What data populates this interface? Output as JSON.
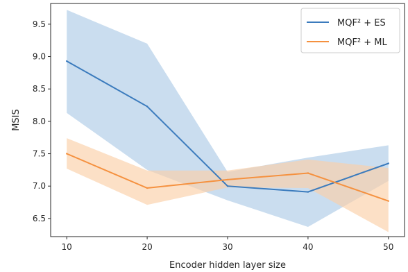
{
  "chart_data": {
    "type": "line",
    "xlabel": "Encoder hidden layer size",
    "ylabel": "MSIS",
    "x": [
      10,
      20,
      30,
      40,
      50
    ],
    "xticks": [
      "10",
      "20",
      "30",
      "40",
      "50"
    ],
    "yticks": [
      "6.5",
      "7.0",
      "7.5",
      "8.0",
      "8.5",
      "9.0",
      "9.5"
    ],
    "xlim": [
      8,
      52
    ],
    "ylim": [
      6.22,
      9.82
    ],
    "grid": false,
    "legend_position": "upper-right",
    "series": [
      {
        "name": "MQF² + ES",
        "color": "#3b7bbd",
        "band_color": "#aecbe6",
        "values": [
          8.93,
          8.23,
          7.0,
          6.91,
          7.35
        ],
        "lower": [
          8.13,
          7.25,
          6.78,
          6.37,
          7.08
        ],
        "upper": [
          9.72,
          9.2,
          7.22,
          7.44,
          7.63
        ]
      },
      {
        "name": "MQF² + ML",
        "color": "#f5913f",
        "band_color": "#fbcfa8",
        "values": [
          7.5,
          6.97,
          7.1,
          7.2,
          6.77
        ],
        "lower": [
          7.27,
          6.71,
          6.98,
          6.97,
          6.29
        ],
        "upper": [
          7.74,
          7.24,
          7.24,
          7.41,
          7.28
        ]
      }
    ]
  }
}
